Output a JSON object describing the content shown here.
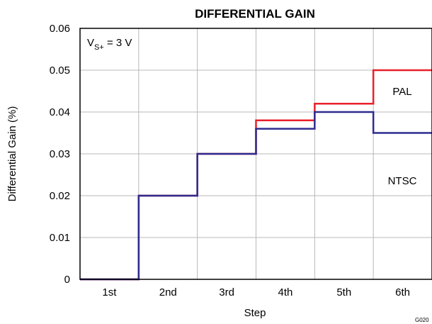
{
  "chart_data": {
    "type": "line",
    "title": "DIFFERENTIAL GAIN",
    "xlabel": "Step",
    "ylabel": "Differential Gain (%)",
    "categories": [
      "1st",
      "2nd",
      "3rd",
      "4th",
      "5th",
      "6th"
    ],
    "ylim": [
      0,
      0.06
    ],
    "yticks": [
      "0",
      "0.01",
      "0.02",
      "0.03",
      "0.04",
      "0.05",
      "0.06"
    ],
    "step_style": "steps-mid",
    "grid": true,
    "series": [
      {
        "name": "PAL",
        "color": "#e8202a",
        "values": [
          0,
          0.02,
          0.03,
          0.038,
          0.042,
          0.05
        ]
      },
      {
        "name": "NTSC",
        "color": "#2e2b8f",
        "values": [
          0,
          0.02,
          0.03,
          0.036,
          0.04,
          0.035
        ]
      }
    ],
    "condition_main": "V",
    "condition_sub": "S+",
    "condition_value": " = 3 V",
    "figure_code": "G020"
  }
}
